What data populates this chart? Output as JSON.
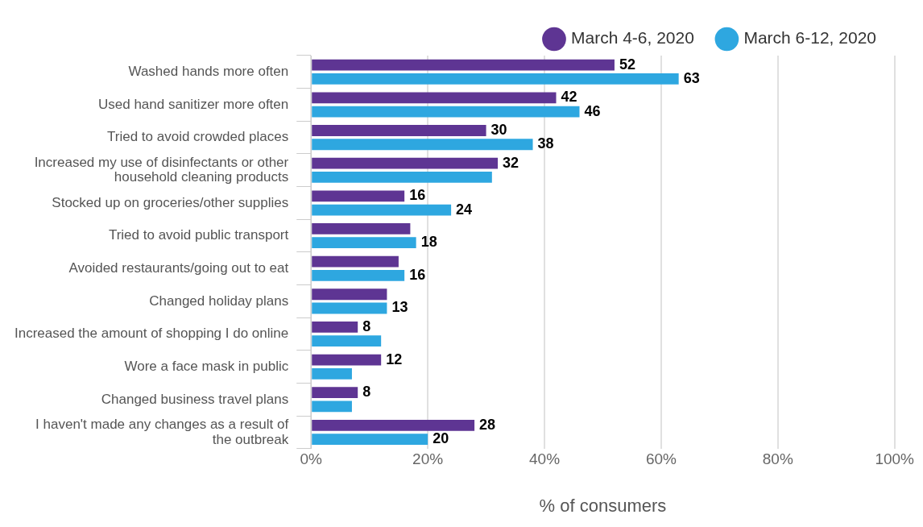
{
  "chart_data": {
    "type": "bar",
    "orientation": "horizontal",
    "xlabel": "% of consumers",
    "categories": [
      "Washed hands more often",
      "Used hand sanitizer more often",
      "Tried to avoid crowded places",
      "Increased my use of disinfectants or other household cleaning products",
      "Stocked up on groceries/other supplies",
      "Tried to avoid public transport",
      "Avoided restaurants/going out to eat",
      "Changed holiday plans",
      "Increased the amount of shopping I do online",
      "Wore a face mask in public",
      "Changed business travel plans",
      "I haven't made any changes as a result of the outbreak"
    ],
    "series": [
      {
        "name": "March 4-6, 2020",
        "color": "#5e3593",
        "values": [
          52,
          42,
          30,
          32,
          16,
          17,
          15,
          13,
          8,
          12,
          8,
          28
        ],
        "value_labels": [
          "52",
          "42",
          "30",
          "32",
          "16",
          null,
          null,
          null,
          "8",
          "12",
          "8",
          "28"
        ]
      },
      {
        "name": "March 6-12, 2020",
        "color": "#2ea7e0",
        "values": [
          63,
          46,
          38,
          31,
          24,
          18,
          16,
          13,
          12,
          7,
          7,
          20
        ],
        "value_labels": [
          "63",
          "46",
          "38",
          null,
          "24",
          "18",
          "16",
          "13",
          null,
          null,
          null,
          "20"
        ]
      }
    ],
    "xlim": [
      0,
      100
    ],
    "xticks": [
      {
        "value": 0,
        "label": "0%"
      },
      {
        "value": 20,
        "label": "20%"
      },
      {
        "value": 40,
        "label": "40%"
      },
      {
        "value": 60,
        "label": "60%"
      },
      {
        "value": 80,
        "label": "80%"
      },
      {
        "value": 100,
        "label": "100%"
      }
    ],
    "grid": "x",
    "legend": "top right"
  }
}
